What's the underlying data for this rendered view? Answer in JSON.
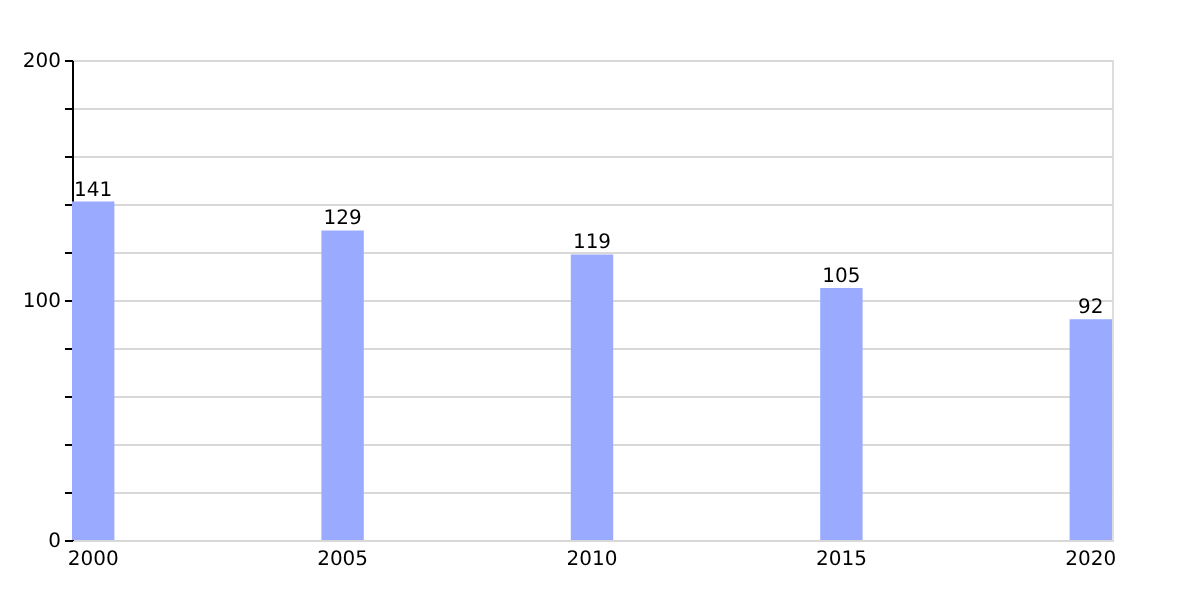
{
  "chart_data": {
    "type": "bar",
    "categories": [
      "2000",
      "2005",
      "2010",
      "2015",
      "2020"
    ],
    "values": [
      141,
      129,
      119,
      105,
      92
    ],
    "color": "#99aaff",
    "ylim": [
      0,
      200
    ],
    "yticks": [
      0,
      {
        "value": 20,
        "label": null
      },
      {
        "value": 40,
        "label": null
      },
      {
        "value": 60,
        "label": null
      },
      {
        "value": 80,
        "label": null
      },
      100,
      {
        "value": 120,
        "label": null
      },
      {
        "value": 140,
        "label": null
      },
      {
        "value": 160,
        "label": null
      },
      {
        "value": 180,
        "label": null
      },
      200
    ],
    "grid": true,
    "data_labels": true
  }
}
